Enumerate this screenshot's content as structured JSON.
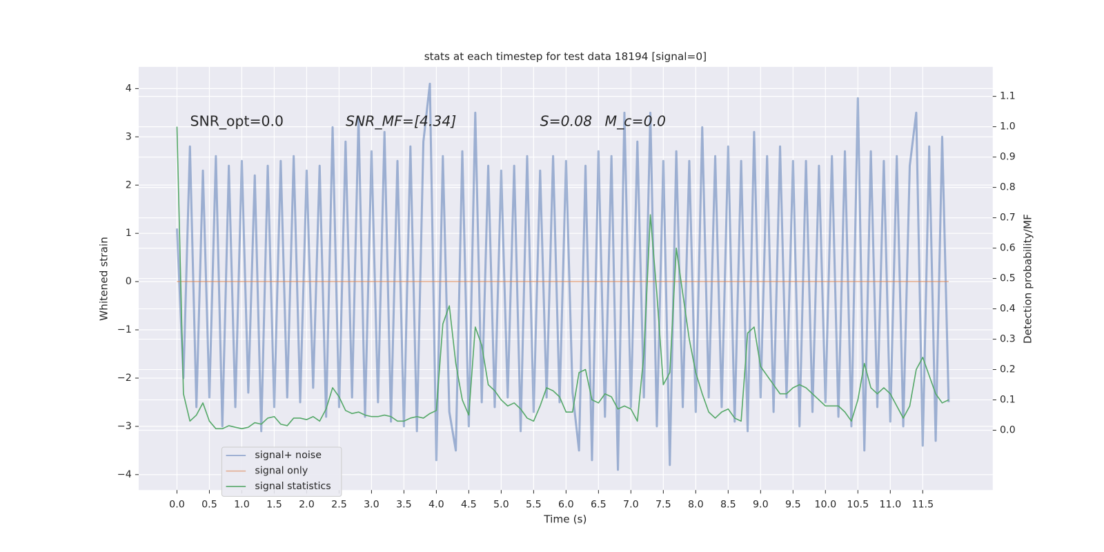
{
  "chart_data": {
    "type": "line",
    "title": "stats at each timestep for test data 18194 [signal=0]",
    "xlabel": "Time (s)",
    "ylabel": "Whitened strain",
    "y2label": "Detection probability/MF",
    "annotations": [
      "SNR_opt=0.0",
      "SNR_MF=[4.34]",
      "S=0.08",
      "M_c=0.0"
    ],
    "x": [
      0.0,
      0.1,
      0.2,
      0.3,
      0.4,
      0.5,
      0.6,
      0.7,
      0.8,
      0.9,
      1.0,
      1.1,
      1.2,
      1.3,
      1.4,
      1.5,
      1.6,
      1.7,
      1.8,
      1.9,
      2.0,
      2.1,
      2.2,
      2.3,
      2.4,
      2.5,
      2.6,
      2.7,
      2.8,
      2.9,
      3.0,
      3.1,
      3.2,
      3.3,
      3.4,
      3.5,
      3.6,
      3.7,
      3.8,
      3.9,
      4.0,
      4.1,
      4.2,
      4.3,
      4.4,
      4.5,
      4.6,
      4.7,
      4.8,
      4.9,
      5.0,
      5.1,
      5.2,
      5.3,
      5.4,
      5.5,
      5.6,
      5.7,
      5.8,
      5.9,
      6.0,
      6.1,
      6.2,
      6.3,
      6.4,
      6.5,
      6.6,
      6.7,
      6.8,
      6.9,
      7.0,
      7.1,
      7.2,
      7.3,
      7.4,
      7.5,
      7.6,
      7.7,
      7.8,
      7.9,
      8.0,
      8.1,
      8.2,
      8.3,
      8.4,
      8.5,
      8.6,
      8.7,
      8.8,
      8.9,
      9.0,
      9.1,
      9.2,
      9.3,
      9.4,
      9.5,
      9.6,
      9.7,
      9.8,
      9.9,
      10.0,
      10.1,
      10.2,
      10.3,
      10.4,
      10.5,
      10.6,
      10.7,
      10.8,
      10.9,
      11.0,
      11.1,
      11.2,
      11.3,
      11.4,
      11.5,
      11.6,
      11.7,
      11.8,
      11.9
    ],
    "series": [
      {
        "name": "signal+ noise",
        "color": "#4c72b0",
        "values": [
          1.1,
          -2.0,
          2.8,
          -2.6,
          2.3,
          -2.4,
          2.6,
          -3.0,
          2.4,
          -2.6,
          2.5,
          -2.3,
          2.2,
          -3.1,
          2.4,
          -2.6,
          2.5,
          -2.4,
          2.6,
          -2.5,
          2.3,
          -2.2,
          2.4,
          -2.8,
          3.2,
          -2.6,
          2.9,
          -2.4,
          3.4,
          -2.8,
          2.7,
          -2.5,
          3.1,
          -2.9,
          2.5,
          -3.0,
          2.8,
          -3.1,
          2.9,
          4.1,
          -3.7,
          2.6,
          -2.7,
          -3.5,
          2.7,
          -3.0,
          3.5,
          -2.5,
          2.4,
          -2.6,
          2.3,
          -2.4,
          2.4,
          -3.1,
          2.6,
          -2.7,
          2.3,
          -2.4,
          2.6,
          -2.5,
          2.5,
          -2.3,
          -3.5,
          2.4,
          -3.7,
          2.7,
          -2.8,
          2.6,
          -3.9,
          3.5,
          -2.6,
          2.9,
          -2.4,
          3.5,
          -3.0,
          2.5,
          -3.8,
          2.7,
          -2.6,
          2.5,
          -2.7,
          3.2,
          -2.4,
          2.6,
          -2.6,
          2.8,
          -2.9,
          2.5,
          -3.1,
          3.1,
          -2.4,
          2.6,
          -2.7,
          2.8,
          -2.4,
          2.5,
          -3.0,
          2.5,
          -2.7,
          2.4,
          -2.5,
          2.6,
          -2.8,
          2.7,
          -3.0,
          3.8,
          -3.5,
          2.7,
          -2.6,
          2.5,
          -2.9,
          2.6,
          -3.0,
          2.4,
          3.5,
          -3.4,
          2.8,
          -3.3,
          3.0,
          -2.5
        ]
      },
      {
        "name": "signal only",
        "color": "#dd8452",
        "values": [
          0,
          0,
          0,
          0,
          0,
          0,
          0,
          0,
          0,
          0,
          0,
          0,
          0,
          0,
          0,
          0,
          0,
          0,
          0,
          0,
          0,
          0,
          0,
          0,
          0,
          0,
          0,
          0,
          0,
          0,
          0,
          0,
          0,
          0,
          0,
          0,
          0,
          0,
          0,
          0,
          0,
          0,
          0,
          0,
          0,
          0,
          0,
          0,
          0,
          0,
          0,
          0,
          0,
          0,
          0,
          0,
          0,
          0,
          0,
          0,
          0,
          0,
          0,
          0,
          0,
          0,
          0,
          0,
          0,
          0,
          0,
          0,
          0,
          0,
          0,
          0,
          0,
          0,
          0,
          0,
          0,
          0,
          0,
          0,
          0,
          0,
          0,
          0,
          0,
          0,
          0,
          0,
          0,
          0,
          0,
          0,
          0,
          0,
          0,
          0,
          0,
          0,
          0,
          0,
          0,
          0,
          0,
          0,
          0,
          0,
          0,
          0,
          0,
          0,
          0,
          0,
          0,
          0,
          0,
          0
        ]
      },
      {
        "name": "signal statistics",
        "color": "#55a868",
        "axis": "y2",
        "values": [
          1.0,
          0.12,
          0.03,
          0.05,
          0.09,
          0.03,
          0.005,
          0.005,
          0.015,
          0.01,
          0.005,
          0.01,
          0.025,
          0.02,
          0.04,
          0.045,
          0.02,
          0.015,
          0.04,
          0.04,
          0.035,
          0.045,
          0.03,
          0.07,
          0.14,
          0.11,
          0.065,
          0.055,
          0.06,
          0.05,
          0.045,
          0.045,
          0.05,
          0.045,
          0.03,
          0.03,
          0.04,
          0.045,
          0.04,
          0.055,
          0.065,
          0.35,
          0.41,
          0.22,
          0.1,
          0.05,
          0.34,
          0.28,
          0.15,
          0.13,
          0.1,
          0.08,
          0.09,
          0.07,
          0.04,
          0.03,
          0.08,
          0.14,
          0.13,
          0.11,
          0.06,
          0.06,
          0.19,
          0.2,
          0.1,
          0.09,
          0.12,
          0.11,
          0.07,
          0.08,
          0.07,
          0.03,
          0.25,
          0.71,
          0.45,
          0.15,
          0.19,
          0.6,
          0.45,
          0.3,
          0.19,
          0.12,
          0.06,
          0.04,
          0.06,
          0.07,
          0.04,
          0.03,
          0.32,
          0.34,
          0.21,
          0.18,
          0.15,
          0.12,
          0.12,
          0.14,
          0.15,
          0.14,
          0.12,
          0.1,
          0.08,
          0.08,
          0.08,
          0.06,
          0.03,
          0.1,
          0.22,
          0.14,
          0.12,
          0.14,
          0.12,
          0.08,
          0.04,
          0.08,
          0.2,
          0.24,
          0.18,
          0.12,
          0.09,
          0.1
        ]
      }
    ],
    "xlim": [
      -0.59,
      12.58
    ],
    "ylim": [
      -4.32,
      4.45
    ],
    "y2lim": [
      -0.197,
      1.197
    ],
    "xticks": [
      {
        "value": 0,
        "label": "0.0"
      },
      0.5,
      {
        "value": 1,
        "label": "1.0"
      },
      1.5,
      {
        "value": 2,
        "label": "2.0"
      },
      2.5,
      {
        "value": 3,
        "label": "3.0"
      },
      3.5,
      {
        "value": 4,
        "label": "4.0"
      },
      4.5,
      {
        "value": 5,
        "label": "5.0"
      },
      5.5,
      {
        "value": 6,
        "label": "6.0"
      },
      6.5,
      {
        "value": 7,
        "label": "7.0"
      },
      7.5,
      {
        "value": 8,
        "label": "8.0"
      },
      8.5,
      {
        "value": 9,
        "label": "9.0"
      },
      9.5,
      {
        "value": 10,
        "label": "10.0"
      },
      10.5,
      {
        "value": 11,
        "label": "11.0"
      },
      11.5
    ],
    "yticks": [
      {
        "value": -4,
        "label": "−4"
      },
      {
        "value": -3,
        "label": "−3"
      },
      {
        "value": -2,
        "label": "−2"
      },
      {
        "value": -1,
        "label": "−1"
      },
      0,
      1,
      2,
      3,
      4
    ],
    "y2ticks": [
      {
        "value": 0,
        "label": "0.0"
      },
      0.1,
      0.2,
      0.3,
      0.4,
      0.5,
      0.6,
      0.7,
      0.8,
      0.9,
      {
        "value": 1,
        "label": "1.0"
      },
      1.1
    ],
    "grid": true,
    "legend_loc": "lower left"
  }
}
